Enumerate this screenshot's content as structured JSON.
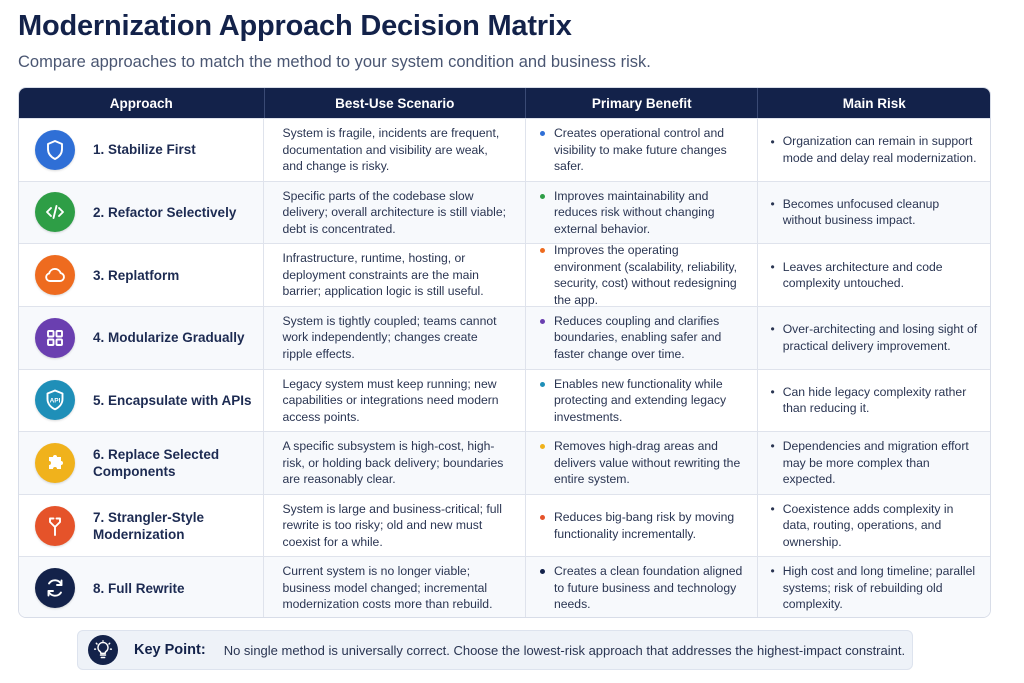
{
  "title": "Modernization Approach Decision Matrix",
  "subtitle": "Compare approaches to match the method to your system condition and business risk.",
  "columns": [
    "Approach",
    "Best-Use Scenario",
    "Primary Benefit",
    "Main Risk"
  ],
  "rows": [
    {
      "approach": "1. Stabilize First",
      "icon": "shield-icon",
      "color": "#2f6fd6",
      "scenario": "System is fragile, incidents are frequent, documentation and visibility are weak, and change is risky.",
      "benefit": "Creates operational control and visibility to make future changes safer.",
      "risk": "Organization can remain in support mode and delay real modernization."
    },
    {
      "approach": "2. Refactor Selectively",
      "icon": "code-icon",
      "color": "#2e9e46",
      "scenario": "Specific parts of the codebase slow delivery; overall architecture is still viable; debt is concentrated.",
      "benefit": "Improves maintainability and reduces risk without changing external behavior.",
      "risk": "Becomes unfocused cleanup without business impact."
    },
    {
      "approach": "3. Replatform",
      "icon": "cloud-icon",
      "color": "#ee6b1f",
      "scenario": "Infrastructure, runtime, hosting, or deployment constraints are the main barrier; application logic is still useful.",
      "benefit": "Improves the operating environment (scalability, reliability, security, cost) without redesigning the app.",
      "risk": "Leaves architecture and code complexity untouched."
    },
    {
      "approach": "4. Modularize Gradually",
      "icon": "grid-icon",
      "color": "#6a3fb0",
      "scenario": "System is tightly coupled; teams cannot work independently; changes create ripple effects.",
      "benefit": "Reduces coupling and clarifies boundaries, enabling safer and faster change over time.",
      "risk": "Over-architecting and losing sight of practical delivery improvement."
    },
    {
      "approach": "5. Encapsulate with APIs",
      "icon": "api-shield-icon",
      "color": "#1f8fb8",
      "scenario": "Legacy system must keep running; new capabilities or integrations need modern access points.",
      "benefit": "Enables new functionality while protecting and extending legacy investments.",
      "risk": "Can hide legacy complexity rather than reducing it."
    },
    {
      "approach": "6. Replace Selected Components",
      "icon": "puzzle-icon",
      "color": "#f0b21c",
      "scenario": "A specific subsystem is high-cost, high-risk, or holding back delivery; boundaries are reasonably clear.",
      "benefit": "Removes high-drag areas and delivers value without rewriting the entire system.",
      "risk": "Dependencies and migration effort may be more complex than expected."
    },
    {
      "approach": "7. Strangler-Style Modernization",
      "icon": "split-arrow-icon",
      "color": "#e5532a",
      "scenario": "System is large and business-critical; full rewrite is too risky; old and new must coexist for a while.",
      "benefit": "Reduces big-bang risk by moving functionality incrementally.",
      "risk": "Coexistence adds complexity in data, routing, operations, and ownership."
    },
    {
      "approach": "8. Full Rewrite",
      "icon": "refresh-icon",
      "color": "#13224a",
      "scenario": "Current system is no longer viable; business model changed; incremental modernization costs more than rebuild.",
      "benefit": "Creates a clean foundation aligned to future business and technology needs.",
      "risk": "High cost and long timeline; parallel systems; risk of rebuilding old complexity."
    }
  ],
  "key_point": {
    "label": "Key Point:",
    "text": "No single method is universally correct. Choose the lowest-risk approach that addresses the highest-impact constraint.",
    "icon": "lightbulb-icon"
  }
}
